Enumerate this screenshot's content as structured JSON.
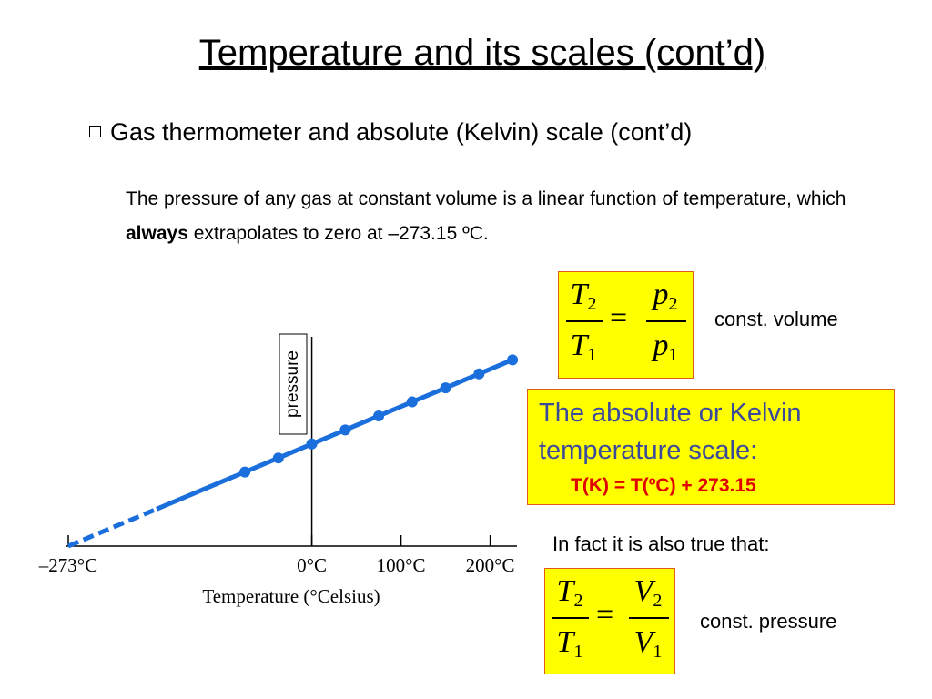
{
  "title": "Temperature and its scales (cont’d)",
  "bullet": "Gas thermometer and absolute (Kelvin) scale (cont’d)",
  "paragraph": {
    "before": "The pressure of any gas at constant volume is a linear function of temperature, which ",
    "bold": "always",
    "after": " extrapolates to zero at  –273.15 ºC."
  },
  "equation_1": {
    "left_num": [
      "T",
      "2"
    ],
    "left_den": [
      "T",
      "1"
    ],
    "operator": "=",
    "right_num": [
      "p",
      "2"
    ],
    "right_den": [
      "p",
      "1"
    ],
    "note": "const. volume"
  },
  "kelvin_box": {
    "line_1": "The absolute or Kelvin",
    "line_2": "temperature scale:",
    "formula": "T(K) = T(ºC) + 273.15"
  },
  "also_true": "In fact it is also true that:",
  "equation_2": {
    "left_num": [
      "T",
      "2"
    ],
    "left_den": [
      "T",
      "1"
    ],
    "operator": "=",
    "right_num": [
      "V",
      "2"
    ],
    "right_den": [
      "V",
      "1"
    ],
    "note": "const. pressure"
  },
  "chart_data": {
    "type": "line",
    "y_label": "pressure",
    "x_label": "Temperature (°Celsius)",
    "xlim": [
      -273,
      230
    ],
    "xticks": [
      {
        "value": -273,
        "label": "–273°C"
      },
      {
        "value": 0,
        "label": "0°C"
      },
      {
        "value": 100,
        "label": "100°C"
      },
      {
        "value": 200,
        "label": "200°C"
      }
    ],
    "x": [
      -75,
      -37.5,
      0,
      37.5,
      75,
      112.5,
      150,
      187.5,
      225
    ],
    "color": "#1a6fdc"
  }
}
